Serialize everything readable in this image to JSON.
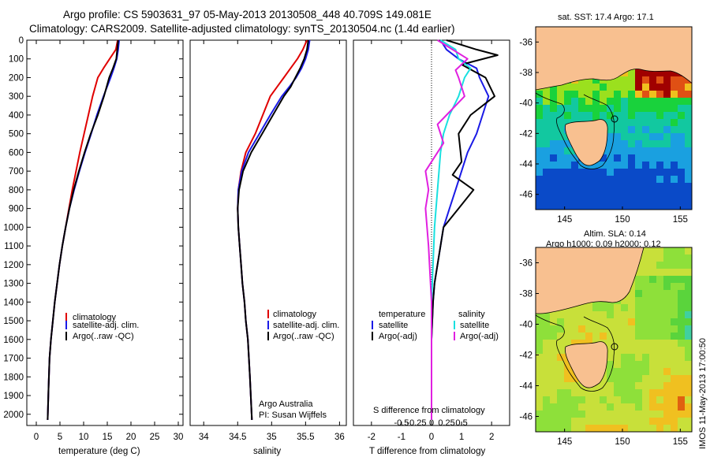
{
  "header": {
    "line1": "Argo profile: CS 5903631_97 05-May-2013 20130508_448 40.709S 149.081E",
    "line2": "Climatology: CARS2009. Satellite-adjusted climatology: synTS_20130504.nc (1.4d earlier)"
  },
  "colors": {
    "climatology": "#e00000",
    "satellite": "#1a1ae6",
    "argo": "#000000",
    "salinity_satellite": "#19e0e0",
    "salinity_argo": "#e020e0"
  },
  "panel1": {
    "xlabel": "temperature (deg C)",
    "legend": [
      "climatology",
      "satellite-adj. clim.",
      "Argo(..raw -QC)"
    ]
  },
  "panel2": {
    "xlabel": "salinity",
    "legend": [
      "climatology",
      "satellite-adj. clim.",
      "Argo(..raw -QC)"
    ],
    "credit1": "Argo Australia",
    "credit2": "PI: Susan Wijffels"
  },
  "panel3": {
    "xlabel": "T difference from climatology",
    "top_xlabel": "S difference from climatology",
    "legend_temp_title": "temperature",
    "legend_sal_title": "salinity",
    "legend_sat": "satellite",
    "legend_argo": "Argo(-adj)"
  },
  "map1": {
    "title": "sat. SST: 17.4 Argo: 17.1"
  },
  "map2": {
    "title1": "Altim. SLA: 0.14",
    "title2": "Argo h1000: 0.09 h2000: 0.12"
  },
  "watermark": "IMOS 11-May-2013 17:00:50",
  "chart_data": [
    {
      "type": "line",
      "name": "temperature profile",
      "xlabel": "temperature (deg C)",
      "ylabel": "",
      "xlim": [
        -2,
        31
      ],
      "ylim": [
        2060,
        0
      ],
      "xticks": [
        0,
        5,
        10,
        15,
        20,
        25,
        30
      ],
      "yticks": [
        0,
        100,
        200,
        300,
        400,
        500,
        600,
        700,
        800,
        900,
        1000,
        1100,
        1200,
        1300,
        1400,
        1500,
        1600,
        1700,
        1800,
        1900,
        2000
      ],
      "series": [
        {
          "name": "climatology",
          "x": [
            17.2,
            16.8,
            15.5,
            14.2,
            13.0,
            11.9,
            11.0,
            10.1,
            9.2,
            8.4,
            7.6,
            6.9,
            6.2,
            5.5,
            4.9,
            4.4,
            3.9,
            3.5,
            3.1,
            2.8,
            2.6,
            2.4
          ],
          "y": [
            0,
            50,
            100,
            150,
            200,
            300,
            400,
            500,
            600,
            700,
            800,
            900,
            1000,
            1100,
            1200,
            1300,
            1400,
            1500,
            1600,
            1700,
            1850,
            2030
          ]
        },
        {
          "name": "satellite-adj. clim.",
          "x": [
            17.5,
            17.3,
            17.0,
            16.4,
            15.7,
            14.2,
            12.8,
            11.6,
            10.3,
            9.1,
            8.0,
            7.0,
            6.2,
            5.5,
            4.9,
            4.4,
            3.9,
            3.5,
            3.1,
            2.8,
            2.6,
            2.4
          ],
          "y": [
            0,
            50,
            100,
            150,
            200,
            300,
            400,
            500,
            600,
            700,
            800,
            900,
            1000,
            1100,
            1200,
            1300,
            1400,
            1500,
            1600,
            1700,
            1850,
            2030
          ]
        },
        {
          "name": "Argo(..raw -QC)",
          "x": [
            17.3,
            17.1,
            16.9,
            16.2,
            15.4,
            14.3,
            13.0,
            11.5,
            10.2,
            9.0,
            7.9,
            7.0,
            6.2,
            5.5,
            4.9,
            4.4,
            3.9,
            3.5,
            3.1,
            2.8,
            2.6,
            2.4
          ],
          "y": [
            0,
            50,
            100,
            150,
            200,
            300,
            400,
            500,
            600,
            700,
            800,
            900,
            1000,
            1100,
            1200,
            1300,
            1400,
            1500,
            1600,
            1700,
            1850,
            2030
          ]
        }
      ]
    },
    {
      "type": "line",
      "name": "salinity profile",
      "xlabel": "salinity",
      "xlim": [
        33.8,
        36.1
      ],
      "ylim": [
        2060,
        0
      ],
      "xticks": [
        34,
        34.5,
        35,
        35.5,
        36
      ],
      "series": [
        {
          "name": "climatology",
          "x": [
            35.52,
            35.46,
            35.38,
            35.28,
            35.18,
            35.08,
            34.98,
            34.87,
            34.76,
            34.62,
            34.55,
            34.51,
            34.5,
            34.51,
            34.53,
            34.55,
            34.57,
            34.6,
            34.62,
            34.65,
            34.68,
            34.71
          ],
          "y": [
            0,
            50,
            100,
            150,
            200,
            250,
            300,
            400,
            500,
            600,
            700,
            800,
            900,
            1000,
            1100,
            1200,
            1300,
            1400,
            1500,
            1600,
            1800,
            2030
          ]
        },
        {
          "name": "satellite-adj. clim.",
          "x": [
            35.56,
            35.54,
            35.5,
            35.44,
            35.36,
            35.26,
            35.15,
            34.98,
            34.82,
            34.66,
            34.56,
            34.51,
            34.5,
            34.51,
            34.53,
            34.55,
            34.57,
            34.6,
            34.62,
            34.65,
            34.68,
            34.71
          ],
          "y": [
            0,
            50,
            100,
            150,
            200,
            250,
            300,
            400,
            500,
            600,
            700,
            800,
            900,
            1000,
            1100,
            1200,
            1300,
            1400,
            1500,
            1600,
            1800,
            2030
          ]
        },
        {
          "name": "Argo(..raw -QC)",
          "x": [
            35.54,
            35.52,
            35.48,
            35.42,
            35.35,
            35.28,
            35.18,
            35.02,
            34.86,
            34.7,
            34.58,
            34.52,
            34.5,
            34.51,
            34.53,
            34.55,
            34.57,
            34.6,
            34.62,
            34.65,
            34.68,
            34.71
          ],
          "y": [
            0,
            50,
            100,
            150,
            200,
            250,
            300,
            400,
            500,
            600,
            700,
            800,
            900,
            1000,
            1100,
            1200,
            1300,
            1400,
            1500,
            1600,
            1800,
            2030
          ]
        }
      ]
    },
    {
      "type": "line",
      "name": "difference from climatology",
      "xlabel": "T difference from climatology",
      "top_xlabel": "S difference from climatology",
      "xlim": [
        -2.6,
        2.6
      ],
      "ylim": [
        2060,
        0
      ],
      "xticks": [
        -2,
        -1,
        0,
        1,
        2
      ],
      "top_xticks": [
        "-0.5",
        "-0.25",
        "0",
        "0.25",
        "0.5"
      ],
      "series": [
        {
          "name": "temperature satellite",
          "x": [
            0.3,
            0.5,
            0.9,
            1.5,
            1.6,
            1.9,
            1.7,
            1.5,
            1.2,
            1.0,
            0.8,
            0.6,
            0.4,
            0.3,
            0.2,
            0.1,
            0.05,
            0,
            0,
            0
          ],
          "y": [
            0,
            50,
            100,
            150,
            200,
            300,
            400,
            500,
            600,
            700,
            800,
            900,
            1000,
            1100,
            1200,
            1300,
            1400,
            1600,
            1800,
            2030
          ]
        },
        {
          "name": "temperature Argo(-adj)",
          "x": [
            0.5,
            1.5,
            2.2,
            1.0,
            1.8,
            2.1,
            1.3,
            0.9,
            1.0,
            0.7,
            1.4,
            0.9,
            0.4,
            0.3,
            0.2,
            0.1,
            0.05,
            0,
            0,
            0
          ],
          "y": [
            0,
            50,
            80,
            130,
            200,
            300,
            400,
            500,
            650,
            720,
            800,
            900,
            1000,
            1100,
            1200,
            1300,
            1400,
            1600,
            1800,
            2030
          ]
        },
        {
          "name": "salinity satellite",
          "x": [
            0.3,
            0.8,
            0.9,
            1.3,
            1.1,
            0.9,
            0.6,
            0.4,
            0.3,
            0.2,
            0.1,
            0.05,
            0,
            0,
            0
          ],
          "y": [
            0,
            50,
            100,
            150,
            200,
            300,
            400,
            500,
            600,
            800,
            1000,
            1200,
            1400,
            1700,
            2030
          ]
        },
        {
          "name": "salinity Argo(-adj)",
          "x": [
            0.2,
            0.7,
            1.2,
            0.8,
            0.9,
            1.1,
            0.5,
            0.2,
            0.4,
            -0.2,
            -0.1,
            -0.2,
            -0.1,
            0,
            0
          ],
          "y": [
            0,
            50,
            100,
            160,
            200,
            300,
            400,
            450,
            550,
            700,
            800,
            900,
            1100,
            1400,
            2030
          ]
        }
      ]
    },
    {
      "type": "heatmap",
      "name": "SST map",
      "title": "sat. SST: 17.4 Argo: 17.1",
      "xlim": [
        142.5,
        156
      ],
      "ylim": [
        -47,
        -35
      ],
      "xticks": [
        145,
        150,
        155
      ],
      "yticks": [
        -36,
        -38,
        -40,
        -42,
        -44,
        -46
      ],
      "argo_position": [
        149.081,
        -40.709
      ]
    },
    {
      "type": "heatmap",
      "name": "SLA map",
      "title": "Altim. SLA: 0.14  Argo h1000: 0.09 h2000: 0.12",
      "xlim": [
        142.5,
        156
      ],
      "ylim": [
        -47,
        -35
      ],
      "xticks": [
        145,
        150,
        155
      ],
      "yticks": [
        -36,
        -38,
        -40,
        -42,
        -44,
        -46
      ],
      "argo_position": [
        149.081,
        -40.709
      ]
    }
  ]
}
